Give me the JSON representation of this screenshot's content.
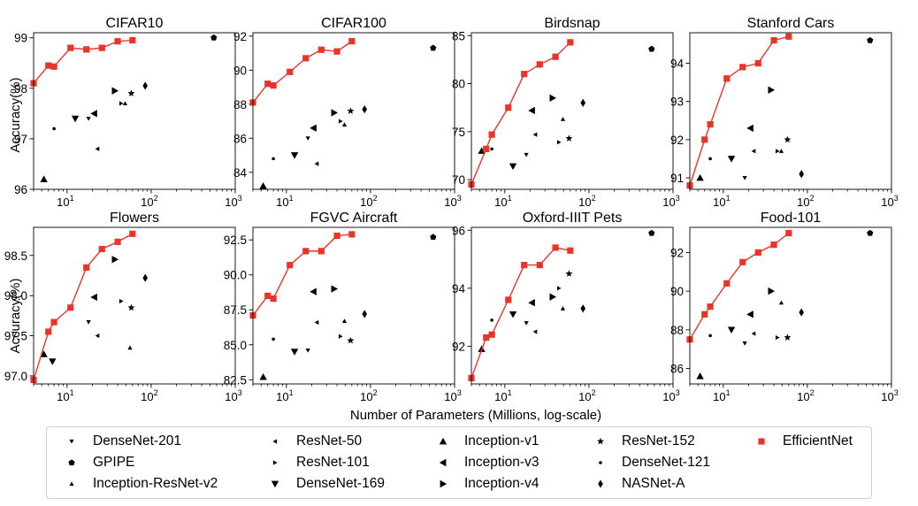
{
  "figure": {
    "y_axis_label": "Accuracy(%)",
    "x_axis_label": "Number of Parameters (Millions, log-scale)"
  },
  "colors": {
    "efficientnet": "#e8352a",
    "baseline": "#000000"
  },
  "legend": [
    {
      "name": "DenseNet-201",
      "marker": "tri-down"
    },
    {
      "name": "GPIPE",
      "marker": "pentagon"
    },
    {
      "name": "Inception-ResNet-v2",
      "marker": "tri-up"
    },
    {
      "name": "ResNet-50",
      "marker": "tri-left"
    },
    {
      "name": "ResNet-101",
      "marker": "tri-right"
    },
    {
      "name": "DenseNet-169",
      "marker": "tri-down-big"
    },
    {
      "name": "Inception-v1",
      "marker": "tri-up-big"
    },
    {
      "name": "Inception-v3",
      "marker": "tri-left-big"
    },
    {
      "name": "Inception-v4",
      "marker": "tri-right-big"
    },
    {
      "name": "ResNet-152",
      "marker": "star"
    },
    {
      "name": "DenseNet-121",
      "marker": "dot"
    },
    {
      "name": "NASNet-A",
      "marker": "diamond"
    },
    {
      "name": "EfficientNet",
      "marker": "square"
    }
  ],
  "chart_data": [
    {
      "type": "scatter",
      "title": "CIFAR10",
      "x_scale": "log",
      "xlim": [
        4,
        1000
      ],
      "ylim": [
        96,
        99.1
      ],
      "yticks": [
        96,
        97,
        98,
        99
      ],
      "xticks": [
        10,
        100,
        1000
      ],
      "efficientnet": {
        "x": [
          4,
          6,
          7,
          11,
          17,
          26,
          40,
          60
        ],
        "y": [
          98.1,
          98.45,
          98.43,
          98.8,
          98.77,
          98.8,
          98.93,
          98.95
        ]
      },
      "points": [
        {
          "model": "Inception-v1",
          "x": 5.3,
          "y": 96.2
        },
        {
          "model": "DenseNet-121",
          "x": 7,
          "y": 97.2
        },
        {
          "model": "DenseNet-169",
          "x": 12.5,
          "y": 97.4
        },
        {
          "model": "DenseNet-201",
          "x": 18,
          "y": 97.4
        },
        {
          "model": "Inception-v3",
          "x": 21,
          "y": 97.5
        },
        {
          "model": "ResNet-50",
          "x": 23,
          "y": 96.8
        },
        {
          "model": "Inception-v4",
          "x": 37,
          "y": 97.95
        },
        {
          "model": "Inception-ResNet-v2",
          "x": 49,
          "y": 97.7
        },
        {
          "model": "ResNet-101",
          "x": 44,
          "y": 97.7
        },
        {
          "model": "ResNet-152",
          "x": 58,
          "y": 97.9
        },
        {
          "model": "NASNet-A",
          "x": 85,
          "y": 98.05
        },
        {
          "model": "GPIPE",
          "x": 556,
          "y": 99.0
        }
      ]
    },
    {
      "type": "scatter",
      "title": "CIFAR100",
      "x_scale": "log",
      "xlim": [
        4,
        1000
      ],
      "ylim": [
        83,
        92.2
      ],
      "yticks": [
        84,
        86,
        88,
        90,
        92
      ],
      "xticks": [
        10,
        100,
        1000
      ],
      "efficientnet": {
        "x": [
          4,
          6,
          7,
          11,
          17,
          26,
          40,
          60
        ],
        "y": [
          88.1,
          89.2,
          89.1,
          89.9,
          90.7,
          91.2,
          91.1,
          91.7
        ]
      },
      "points": [
        {
          "model": "Inception-v1",
          "x": 5.3,
          "y": 83.2
        },
        {
          "model": "DenseNet-121",
          "x": 7,
          "y": 84.8
        },
        {
          "model": "DenseNet-169",
          "x": 12.5,
          "y": 85.0
        },
        {
          "model": "DenseNet-201",
          "x": 18,
          "y": 86.0
        },
        {
          "model": "Inception-v3",
          "x": 21,
          "y": 86.6
        },
        {
          "model": "ResNet-50",
          "x": 23,
          "y": 84.5
        },
        {
          "model": "Inception-v4",
          "x": 37,
          "y": 87.5
        },
        {
          "model": "Inception-ResNet-v2",
          "x": 49,
          "y": 86.8
        },
        {
          "model": "ResNet-101",
          "x": 44,
          "y": 87.0
        },
        {
          "model": "ResNet-152",
          "x": 58,
          "y": 87.6
        },
        {
          "model": "NASNet-A",
          "x": 85,
          "y": 87.7
        },
        {
          "model": "GPIPE",
          "x": 556,
          "y": 91.3
        }
      ]
    },
    {
      "type": "scatter",
      "title": "Birdsnap",
      "x_scale": "log",
      "xlim": [
        4,
        1000
      ],
      "ylim": [
        69,
        85.3
      ],
      "yticks": [
        70,
        75,
        80,
        85
      ],
      "xticks": [
        10,
        100,
        1000
      ],
      "efficientnet": {
        "x": [
          4,
          6,
          7,
          11,
          17,
          26,
          40,
          60
        ],
        "y": [
          69.5,
          73.2,
          74.7,
          77.5,
          81.0,
          82.0,
          82.8,
          84.3
        ]
      },
      "points": [
        {
          "model": "Inception-v1",
          "x": 5.3,
          "y": 73.0
        },
        {
          "model": "DenseNet-121",
          "x": 7,
          "y": 73.2
        },
        {
          "model": "DenseNet-169",
          "x": 12.5,
          "y": 71.4
        },
        {
          "model": "DenseNet-201",
          "x": 18,
          "y": 72.6
        },
        {
          "model": "Inception-v3",
          "x": 21,
          "y": 77.2
        },
        {
          "model": "ResNet-50",
          "x": 23,
          "y": 74.7
        },
        {
          "model": "Inception-v4",
          "x": 37,
          "y": 78.5
        },
        {
          "model": "Inception-ResNet-v2",
          "x": 49,
          "y": 76.3
        },
        {
          "model": "ResNet-101",
          "x": 44,
          "y": 73.9
        },
        {
          "model": "ResNet-152",
          "x": 58,
          "y": 74.3
        },
        {
          "model": "NASNet-A",
          "x": 85,
          "y": 78.0
        },
        {
          "model": "GPIPE",
          "x": 556,
          "y": 83.6
        }
      ]
    },
    {
      "type": "scatter",
      "title": "Stanford Cars",
      "x_scale": "log",
      "xlim": [
        4,
        1000
      ],
      "ylim": [
        90.7,
        94.8
      ],
      "yticks": [
        91,
        92,
        93,
        94
      ],
      "xticks": [
        10,
        100,
        1000
      ],
      "efficientnet": {
        "x": [
          4,
          6,
          7,
          11,
          17,
          26,
          40,
          60
        ],
        "y": [
          90.8,
          92.0,
          92.4,
          93.6,
          93.9,
          94.0,
          94.6,
          94.7
        ]
      },
      "points": [
        {
          "model": "Inception-v1",
          "x": 5.3,
          "y": 91.0
        },
        {
          "model": "DenseNet-121",
          "x": 7,
          "y": 91.5
        },
        {
          "model": "DenseNet-169",
          "x": 12.5,
          "y": 91.5
        },
        {
          "model": "DenseNet-201",
          "x": 18,
          "y": 91.0
        },
        {
          "model": "Inception-v3",
          "x": 21,
          "y": 92.3
        },
        {
          "model": "ResNet-50",
          "x": 23,
          "y": 91.7
        },
        {
          "model": "Inception-v4",
          "x": 37,
          "y": 93.3
        },
        {
          "model": "Inception-ResNet-v2",
          "x": 49,
          "y": 91.7
        },
        {
          "model": "ResNet-101",
          "x": 44,
          "y": 91.7
        },
        {
          "model": "ResNet-152",
          "x": 58,
          "y": 92.0
        },
        {
          "model": "NASNet-A",
          "x": 85,
          "y": 91.1
        },
        {
          "model": "GPIPE",
          "x": 556,
          "y": 94.6
        }
      ]
    },
    {
      "type": "scatter",
      "title": "Flowers",
      "x_scale": "log",
      "xlim": [
        4,
        1000
      ],
      "ylim": [
        96.9,
        98.85
      ],
      "yticks": [
        97.0,
        97.5,
        98.0,
        98.5
      ],
      "ytick_labels": [
        "97.0",
        "97.5",
        "98.0",
        "98.5"
      ],
      "xticks": [
        10,
        100,
        1000
      ],
      "efficientnet": {
        "x": [
          4,
          6,
          7,
          11,
          17,
          26,
          40,
          60
        ],
        "y": [
          96.95,
          97.55,
          97.67,
          97.85,
          98.35,
          98.58,
          98.67,
          98.77
        ]
      },
      "points": [
        {
          "model": "Inception-v1",
          "x": 5.3,
          "y": 97.27
        },
        {
          "model": "DenseNet-169",
          "x": 6.7,
          "y": 97.18
        },
        {
          "model": "DenseNet-121",
          "x": 10.5,
          "y": 97.84
        },
        {
          "model": "DenseNet-201",
          "x": 18,
          "y": 97.67
        },
        {
          "model": "Inception-v3",
          "x": 21,
          "y": 97.98
        },
        {
          "model": "ResNet-50",
          "x": 23,
          "y": 97.5
        },
        {
          "model": "Inception-v4",
          "x": 37,
          "y": 98.45
        },
        {
          "model": "ResNet-101",
          "x": 44,
          "y": 97.93
        },
        {
          "model": "ResNet-152",
          "x": 58,
          "y": 97.85
        },
        {
          "model": "Inception-ResNet-v2",
          "x": 56,
          "y": 97.35
        },
        {
          "model": "NASNet-A",
          "x": 85,
          "y": 98.22
        }
      ]
    },
    {
      "type": "scatter",
      "title": "FGVC Aircraft",
      "x_scale": "log",
      "xlim": [
        4,
        1000
      ],
      "ylim": [
        82.2,
        93.4
      ],
      "yticks": [
        82.5,
        85.0,
        87.5,
        90.0,
        92.5
      ],
      "ytick_labels": [
        "82.5",
        "85.0",
        "87.5",
        "90.0",
        "92.5"
      ],
      "xticks": [
        10,
        100,
        1000
      ],
      "efficientnet": {
        "x": [
          4,
          6,
          7,
          11,
          17,
          26,
          40,
          60
        ],
        "y": [
          87.1,
          88.5,
          88.3,
          90.7,
          91.7,
          91.7,
          92.8,
          92.9
        ]
      },
      "points": [
        {
          "model": "Inception-v1",
          "x": 5.3,
          "y": 82.7
        },
        {
          "model": "DenseNet-121",
          "x": 7,
          "y": 85.4
        },
        {
          "model": "DenseNet-169",
          "x": 12.5,
          "y": 84.5
        },
        {
          "model": "DenseNet-201",
          "x": 18,
          "y": 84.6
        },
        {
          "model": "Inception-v3",
          "x": 21,
          "y": 88.8
        },
        {
          "model": "ResNet-50",
          "x": 23,
          "y": 86.6
        },
        {
          "model": "Inception-v4",
          "x": 37,
          "y": 89.0
        },
        {
          "model": "ResNet-101",
          "x": 44,
          "y": 85.6
        },
        {
          "model": "Inception-ResNet-v2",
          "x": 49,
          "y": 86.7
        },
        {
          "model": "ResNet-152",
          "x": 58,
          "y": 85.3
        },
        {
          "model": "NASNet-A",
          "x": 85,
          "y": 87.2
        },
        {
          "model": "GPIPE",
          "x": 556,
          "y": 92.7
        }
      ]
    },
    {
      "type": "scatter",
      "title": "Oxford-IIIT Pets",
      "x_scale": "log",
      "xlim": [
        4,
        1000
      ],
      "ylim": [
        90.7,
        96.1
      ],
      "yticks": [
        92,
        94,
        96
      ],
      "xticks": [
        10,
        100,
        1000
      ],
      "efficientnet": {
        "x": [
          4,
          6,
          7,
          11,
          17,
          26,
          40,
          60
        ],
        "y": [
          90.9,
          92.3,
          92.4,
          93.6,
          94.8,
          94.8,
          95.4,
          95.3
        ]
      },
      "points": [
        {
          "model": "Inception-v1",
          "x": 5.3,
          "y": 91.9
        },
        {
          "model": "DenseNet-121",
          "x": 7,
          "y": 92.9
        },
        {
          "model": "DenseNet-169",
          "x": 12.5,
          "y": 93.1
        },
        {
          "model": "DenseNet-201",
          "x": 18,
          "y": 92.8
        },
        {
          "model": "Inception-v3",
          "x": 21,
          "y": 93.5
        },
        {
          "model": "ResNet-50",
          "x": 23,
          "y": 92.5
        },
        {
          "model": "Inception-v4",
          "x": 37,
          "y": 93.7
        },
        {
          "model": "ResNet-101",
          "x": 44,
          "y": 94.0
        },
        {
          "model": "Inception-ResNet-v2",
          "x": 49,
          "y": 93.3
        },
        {
          "model": "ResNet-152",
          "x": 58,
          "y": 94.5
        },
        {
          "model": "NASNet-A",
          "x": 85,
          "y": 93.3
        },
        {
          "model": "GPIPE",
          "x": 556,
          "y": 95.9
        }
      ]
    },
    {
      "type": "scatter",
      "title": "Food-101",
      "x_scale": "log",
      "xlim": [
        4,
        1000
      ],
      "ylim": [
        85.2,
        93.3
      ],
      "yticks": [
        86,
        88,
        90,
        92
      ],
      "xticks": [
        10,
        100,
        1000
      ],
      "efficientnet": {
        "x": [
          4,
          6,
          7,
          11,
          17,
          26,
          40,
          60
        ],
        "y": [
          87.5,
          88.8,
          89.2,
          90.4,
          91.5,
          92.0,
          92.4,
          93.0
        ]
      },
      "points": [
        {
          "model": "Inception-v1",
          "x": 5.3,
          "y": 85.6
        },
        {
          "model": "DenseNet-121",
          "x": 7,
          "y": 87.7
        },
        {
          "model": "DenseNet-169",
          "x": 12.5,
          "y": 88.0
        },
        {
          "model": "DenseNet-201",
          "x": 18,
          "y": 87.3
        },
        {
          "model": "Inception-v3",
          "x": 21,
          "y": 88.8
        },
        {
          "model": "ResNet-50",
          "x": 23,
          "y": 87.8
        },
        {
          "model": "Inception-v4",
          "x": 37,
          "y": 90.0
        },
        {
          "model": "ResNet-101",
          "x": 44,
          "y": 87.6
        },
        {
          "model": "Inception-ResNet-v2",
          "x": 49,
          "y": 89.4
        },
        {
          "model": "ResNet-152",
          "x": 58,
          "y": 87.6
        },
        {
          "model": "NASNet-A",
          "x": 85,
          "y": 88.9
        },
        {
          "model": "GPIPE",
          "x": 556,
          "y": 93.0
        }
      ]
    }
  ]
}
